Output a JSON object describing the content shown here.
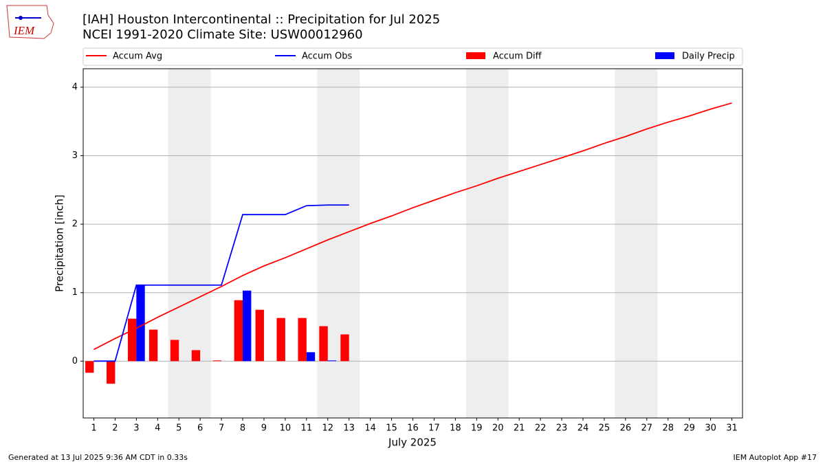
{
  "chart_data": {
    "type": "combo",
    "title": "[IAH] Houston Intercontinental :: Precipitation for Jul 2025",
    "subtitle": "NCEI 1991-2020 Climate Site: USW00012960",
    "logo_text": "IEM",
    "xlabel": "July 2025",
    "ylabel": "Precipitation [inch]",
    "footer_left": "Generated at 13 Jul 2025 9:36 AM CDT in 0.33s",
    "footer_right": "IEM Autoplot App #17",
    "x": [
      1,
      2,
      3,
      4,
      5,
      6,
      7,
      8,
      9,
      10,
      11,
      12,
      13,
      14,
      15,
      16,
      17,
      18,
      19,
      20,
      21,
      22,
      23,
      24,
      25,
      26,
      27,
      28,
      29,
      30,
      31
    ],
    "xlim": [
      0.5,
      31.5
    ],
    "xticks": [
      1,
      2,
      3,
      4,
      5,
      6,
      7,
      8,
      9,
      10,
      11,
      12,
      13,
      14,
      15,
      16,
      17,
      18,
      19,
      20,
      21,
      22,
      23,
      24,
      25,
      26,
      27,
      28,
      29,
      30,
      31
    ],
    "ylim": [
      -0.83,
      4.27
    ],
    "yticks": [
      0,
      1,
      2,
      3,
      4
    ],
    "grid": true,
    "shaded_ranges": [
      [
        4.5,
        6.5
      ],
      [
        11.5,
        13.5
      ],
      [
        18.5,
        20.5
      ],
      [
        25.5,
        27.5
      ]
    ],
    "series": [
      {
        "name": "Accum Avg",
        "type": "line",
        "color": "#ff0000",
        "values": [
          0.17,
          0.33,
          0.48,
          0.64,
          0.79,
          0.94,
          1.09,
          1.25,
          1.39,
          1.51,
          1.64,
          1.77,
          1.89,
          2.01,
          2.12,
          2.24,
          2.35,
          2.46,
          2.56,
          2.67,
          2.77,
          2.87,
          2.97,
          3.07,
          3.18,
          3.28,
          3.39,
          3.49,
          3.58,
          3.68,
          3.77
        ]
      },
      {
        "name": "Accum Obs",
        "type": "line",
        "color": "#0000ff",
        "values": [
          0,
          0,
          1.11,
          1.11,
          1.11,
          1.11,
          1.11,
          2.14,
          2.14,
          2.14,
          2.27,
          2.28,
          2.28,
          null,
          null,
          null,
          null,
          null,
          null,
          null,
          null,
          null,
          null,
          null,
          null,
          null,
          null,
          null,
          null,
          null,
          null
        ]
      },
      {
        "name": "Accum Diff",
        "type": "bar",
        "color": "#ff0000",
        "values": [
          -0.17,
          -0.33,
          0.62,
          0.46,
          0.31,
          0.16,
          0.01,
          0.89,
          0.75,
          0.63,
          0.63,
          0.51,
          0.39,
          null,
          null,
          null,
          null,
          null,
          null,
          null,
          null,
          null,
          null,
          null,
          null,
          null,
          null,
          null,
          null,
          null,
          null
        ]
      },
      {
        "name": "Daily Precip",
        "type": "bar",
        "color": "#0000ff",
        "values": [
          0,
          0,
          1.11,
          0,
          0,
          0,
          0,
          1.03,
          0,
          0,
          0.13,
          0.01,
          0,
          null,
          null,
          null,
          null,
          null,
          null,
          null,
          null,
          null,
          null,
          null,
          null,
          null,
          null,
          null,
          null,
          null,
          null
        ]
      }
    ]
  }
}
